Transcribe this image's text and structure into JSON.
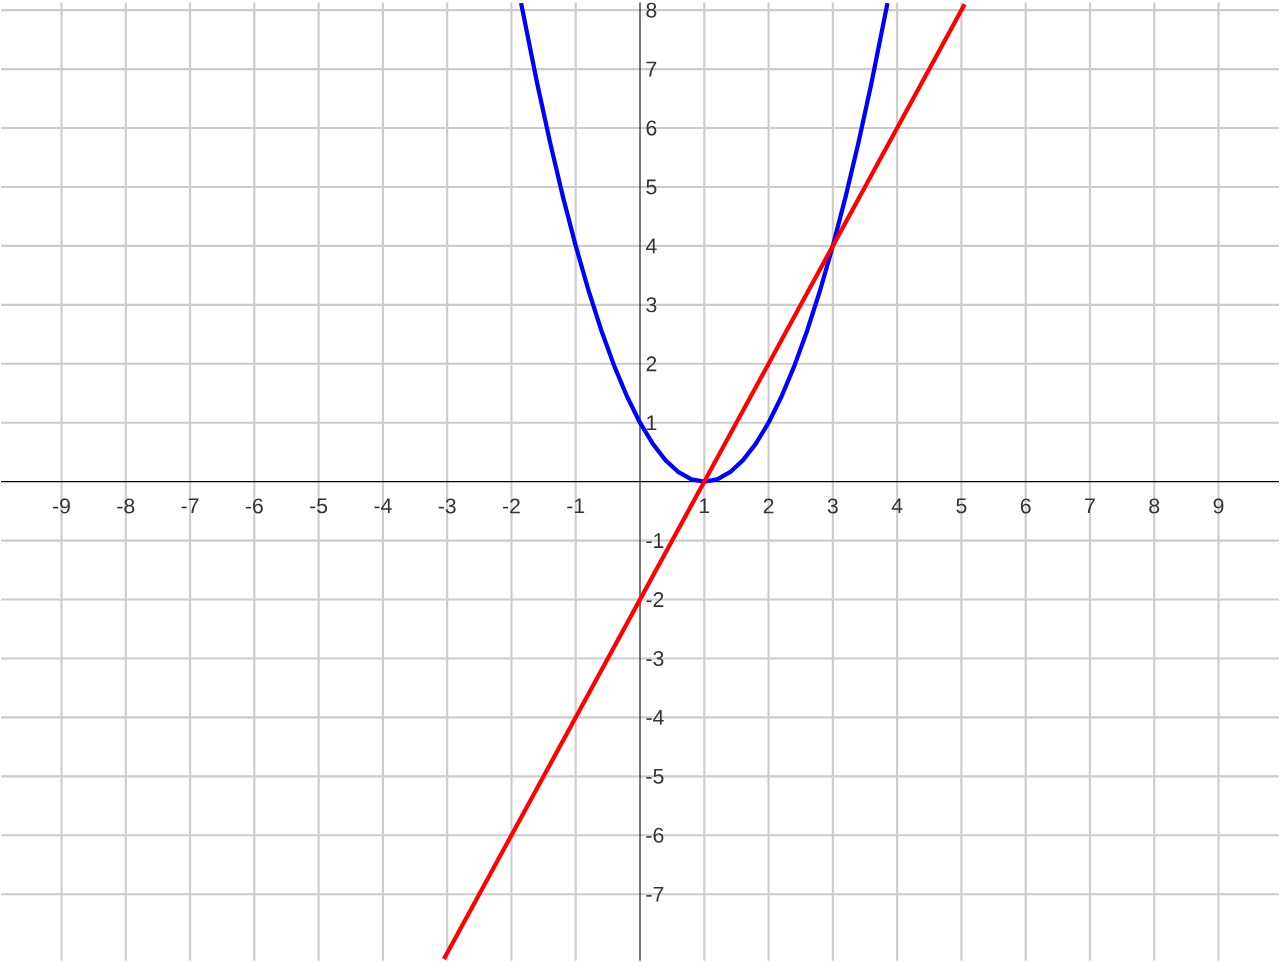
{
  "chart_data": {
    "type": "line",
    "xlim": [
      -9.94,
      9.94
    ],
    "ylim": [
      -8.13,
      8.13
    ],
    "xticks": [
      -9,
      -8,
      -7,
      -6,
      -5,
      -4,
      -3,
      -2,
      -1,
      1,
      2,
      3,
      4,
      5,
      6,
      7,
      8,
      9
    ],
    "yticks": [
      -7,
      -6,
      -5,
      -4,
      -3,
      -2,
      -1,
      1,
      2,
      3,
      4,
      5,
      6,
      7,
      8
    ],
    "grid": true,
    "series": [
      {
        "color": "#0000ff",
        "x": [
          -1.85,
          -1.6,
          -1.4,
          -1.2,
          -1,
          -0.8,
          -0.6,
          -0.4,
          -0.2,
          0,
          0.2,
          0.4,
          0.6,
          0.8,
          1,
          1.2,
          1.4,
          1.6,
          1.8,
          2,
          2.2,
          2.4,
          2.6,
          2.8,
          3,
          3.2,
          3.4,
          3.6,
          3.85
        ],
        "values": [
          8.12,
          6.76,
          5.76,
          4.84,
          4,
          3.24,
          2.56,
          1.96,
          1.44,
          1,
          0.64,
          0.36,
          0.16,
          0.04,
          0,
          0.04,
          0.16,
          0.36,
          0.64,
          1,
          1.44,
          1.96,
          2.56,
          3.24,
          4,
          4.84,
          5.76,
          6.76,
          8.12
        ]
      },
      {
        "color": "#ff0000",
        "x": [
          -3.05,
          5.05
        ],
        "values": [
          -8.1,
          8.1
        ]
      }
    ]
  }
}
